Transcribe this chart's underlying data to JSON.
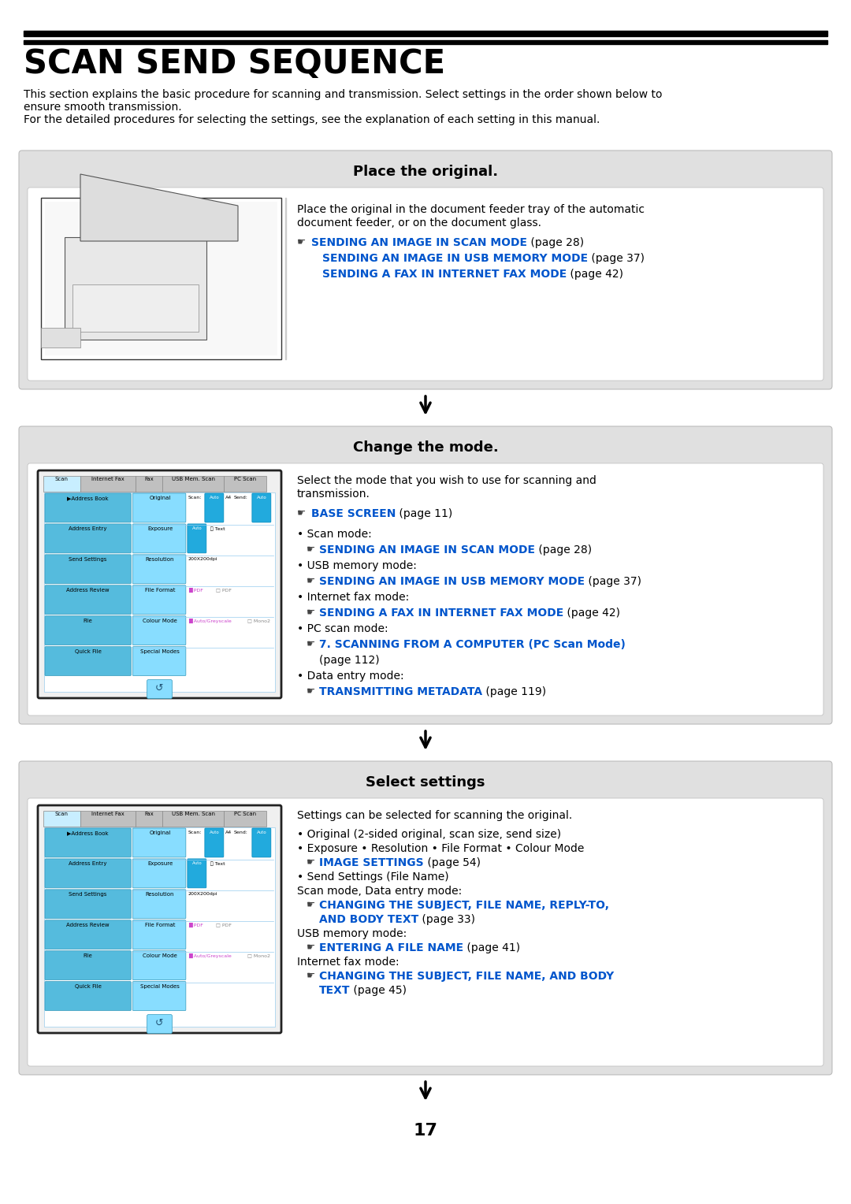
{
  "bg_color": "#ffffff",
  "title": "SCAN SEND SEQUENCE",
  "intro_line1": "This section explains the basic procedure for scanning and transmission. Select settings in the order shown below to",
  "intro_line2": "ensure smooth transmission.",
  "intro_line3": "For the detailed procedures for selecting the settings, see the explanation of each setting in this manual.",
  "box_bg": "#e0e0e0",
  "blue_link": "#0055cc",
  "section1_title": "Place the original.",
  "section1_body1": "Place the original in the document feeder tray of the automatic",
  "section1_body2": "document feeder, or on the document glass.",
  "section1_ref_icon": "☛",
  "section1_link1": "SENDING AN IMAGE IN SCAN MODE",
  "section1_link1_suffix": " (page 28)",
  "section1_link2": "SENDING AN IMAGE IN USB MEMORY MODE",
  "section1_link2_suffix": " (page 37)",
  "section1_link3": "SENDING A FAX IN INTERNET FAX MODE",
  "section1_link3_suffix": " (page 42)",
  "section2_title": "Change the mode.",
  "section2_body1": "Select the mode that you wish to use for scanning and",
  "section2_body2": "transmission.",
  "section2_ref": "BASE SCREEN",
  "section2_ref_suffix": " (page 11)",
  "section2_scan_label": "• Scan mode:",
  "section2_scan_link": "SENDING AN IMAGE IN SCAN MODE",
  "section2_scan_suffix": " (page 28)",
  "section2_usb_label": "• USB memory mode:",
  "section2_usb_link": "SENDING AN IMAGE IN USB MEMORY MODE",
  "section2_usb_suffix": " (page 37)",
  "section2_inet_label": "• Internet fax mode:",
  "section2_inet_link": "SENDING A FAX IN INTERNET FAX MODE",
  "section2_inet_suffix": " (page 42)",
  "section2_pc_label": "• PC scan mode:",
  "section2_pc_link": "7. SCANNING FROM A COMPUTER (PC Scan Mode)",
  "section2_pc_suffix": "",
  "section2_pc_page": "(page 112)",
  "section2_data_label": "• Data entry mode:",
  "section2_data_link": "TRANSMITTING METADATA",
  "section2_data_suffix": " (page 119)",
  "section3_title": "Select settings",
  "section3_body1": "Settings can be selected for scanning the original.",
  "section3_b1": "• Original (2-sided original, scan size, send size)",
  "section3_b2": "• Exposure • Resolution • File Format • Colour Mode",
  "section3_ref1": "IMAGE SETTINGS",
  "section3_ref1_suffix": " (page 54)",
  "section3_b3": "• Send Settings (File Name)",
  "section3_b3sub": "Scan mode, Data entry mode:",
  "section3_ref2a": "CHANGING THE SUBJECT, FILE NAME, REPLY-TO,",
  "section3_ref2b": "AND BODY TEXT",
  "section3_ref2_suffix": " (page 33)",
  "section3_b4sub": "USB memory mode:",
  "section3_ref3": "ENTERING A FILE NAME",
  "section3_ref3_suffix": " (page 41)",
  "section3_b5sub": "Internet fax mode:",
  "section3_ref4a": "CHANGING THE SUBJECT, FILE NAME, AND BODY",
  "section3_ref4b": "TEXT",
  "section3_ref4_suffix": " (page 45)",
  "page_number": "17",
  "tabs": [
    "Scan",
    "Internet Fax",
    "Fax",
    "USB Mem. Scan",
    "PC Scan"
  ],
  "ui_rows": [
    [
      "Address Book",
      "Original",
      "Scan:",
      true,
      "A4",
      "Send:",
      true
    ],
    [
      "Address Entry",
      "Exposure",
      "",
      true,
      "Text",
      "",
      false
    ],
    [
      "Send Settings",
      "Resolution",
      "200X200dpi",
      false,
      "",
      "",
      false
    ],
    [
      "Address Review",
      "File Format",
      "",
      false,
      "PDF",
      "",
      false
    ],
    [
      "File",
      "Colour Mode",
      "",
      false,
      "Auto/Greyscale",
      "",
      false
    ],
    [
      "Quick File",
      "Special Modes",
      "",
      false,
      "",
      "",
      false
    ]
  ]
}
